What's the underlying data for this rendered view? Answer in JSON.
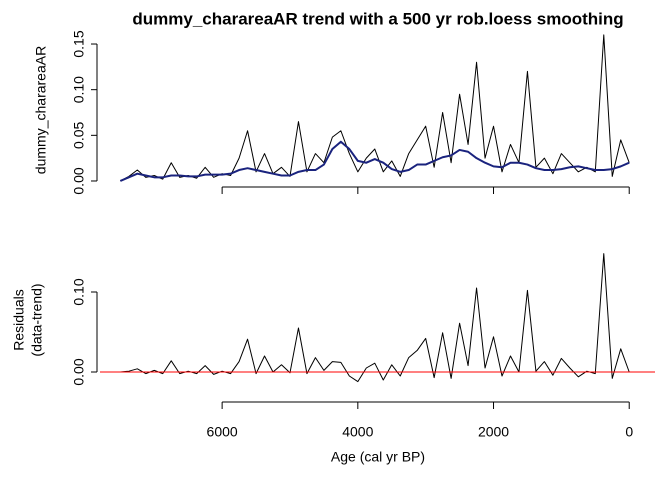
{
  "chart_data": [
    {
      "type": "line",
      "title": "dummy_charareaAR trend with a 500 yr rob.loess smoothing",
      "ylabel": "dummy_charareaAR",
      "x": [
        7500,
        7375,
        7250,
        7125,
        7000,
        6875,
        6750,
        6625,
        6500,
        6375,
        6250,
        6125,
        6000,
        5875,
        5750,
        5625,
        5500,
        5375,
        5250,
        5125,
        5000,
        4875,
        4750,
        4625,
        4500,
        4375,
        4250,
        4125,
        4000,
        3875,
        3750,
        3625,
        3500,
        3375,
        3250,
        3125,
        3000,
        2875,
        2750,
        2625,
        2500,
        2375,
        2250,
        2125,
        2000,
        1875,
        1750,
        1625,
        1500,
        1375,
        1250,
        1125,
        1000,
        875,
        750,
        625,
        500,
        375,
        250,
        125,
        0
      ],
      "series": [
        {
          "color": "#000000",
          "width": 1,
          "values": [
            0.0,
            0.005,
            0.012,
            0.004,
            0.006,
            0.002,
            0.02,
            0.004,
            0.006,
            0.003,
            0.015,
            0.004,
            0.008,
            0.006,
            0.025,
            0.055,
            0.01,
            0.03,
            0.008,
            0.015,
            0.005,
            0.065,
            0.01,
            0.03,
            0.02,
            0.048,
            0.055,
            0.03,
            0.01,
            0.025,
            0.035,
            0.01,
            0.022,
            0.005,
            0.03,
            0.045,
            0.06,
            0.015,
            0.075,
            0.02,
            0.095,
            0.04,
            0.13,
            0.025,
            0.06,
            0.01,
            0.04,
            0.02,
            0.12,
            0.015,
            0.025,
            0.008,
            0.03,
            0.02,
            0.01,
            0.015,
            0.01,
            0.16,
            0.005,
            0.045,
            0.02
          ]
        },
        {
          "color": "#1a237e",
          "width": 2,
          "values": [
            0.0,
            0.004,
            0.008,
            0.006,
            0.004,
            0.004,
            0.006,
            0.006,
            0.005,
            0.005,
            0.007,
            0.007,
            0.007,
            0.008,
            0.012,
            0.014,
            0.012,
            0.01,
            0.008,
            0.006,
            0.006,
            0.01,
            0.012,
            0.012,
            0.018,
            0.035,
            0.043,
            0.035,
            0.022,
            0.02,
            0.024,
            0.02,
            0.013,
            0.01,
            0.012,
            0.018,
            0.018,
            0.022,
            0.026,
            0.028,
            0.034,
            0.032,
            0.025,
            0.02,
            0.016,
            0.015,
            0.02,
            0.02,
            0.018,
            0.014,
            0.012,
            0.012,
            0.013,
            0.015,
            0.016,
            0.014,
            0.012,
            0.012,
            0.013,
            0.016,
            0.02
          ]
        }
      ],
      "xlim": [
        7800,
        -380
      ],
      "ylim": [
        -0.0044,
        0.1544
      ],
      "yticks": [
        {
          "value": 0,
          "label": "0.00"
        },
        {
          "value": 0.05,
          "label": "0.05"
        },
        {
          "value": 0.1,
          "label": "0.10"
        },
        {
          "value": 0.15,
          "label": "0.15"
        }
      ]
    },
    {
      "type": "line",
      "ylabel": [
        "Residuals",
        "(data-trend)"
      ],
      "xlabel": "Age (cal yr BP)",
      "x": [
        7500,
        7375,
        7250,
        7125,
        7000,
        6875,
        6750,
        6625,
        6500,
        6375,
        6250,
        6125,
        6000,
        5875,
        5750,
        5625,
        5500,
        5375,
        5250,
        5125,
        5000,
        4875,
        4750,
        4625,
        4500,
        4375,
        4250,
        4125,
        4000,
        3875,
        3750,
        3625,
        3500,
        3375,
        3250,
        3125,
        3000,
        2875,
        2750,
        2625,
        2500,
        2375,
        2250,
        2125,
        2000,
        1875,
        1750,
        1625,
        1500,
        1375,
        1250,
        1125,
        1000,
        875,
        750,
        625,
        500,
        375,
        250,
        125,
        0
      ],
      "series": [
        {
          "color": "#000000",
          "width": 1,
          "values": [
            0,
            0.001,
            0.004,
            -0.002,
            0.002,
            -0.002,
            0.014,
            -0.002,
            0.001,
            -0.002,
            0.008,
            -0.003,
            0.001,
            -0.002,
            0.013,
            0.041,
            -0.002,
            0.02,
            0,
            0.009,
            -0.001,
            0.055,
            -0.002,
            0.018,
            0.002,
            0.013,
            0.012,
            -0.005,
            -0.012,
            0.005,
            0.011,
            -0.01,
            0.009,
            -0.005,
            0.018,
            0.027,
            0.042,
            -0.007,
            0.049,
            -0.008,
            0.061,
            0.008,
            0.105,
            0.005,
            0.044,
            -0.005,
            0.02,
            0,
            0.102,
            0.001,
            0.013,
            -0.004,
            0.017,
            0.005,
            -0.006,
            0.001,
            -0.002,
            0.148,
            -0.008,
            0.029,
            0
          ]
        }
      ],
      "hline": {
        "value": 0,
        "color": "#ff0000"
      },
      "xlim": [
        7800,
        -380
      ],
      "ylim": [
        -0.0325,
        0.1575
      ],
      "xticks": [
        6000,
        4000,
        2000,
        0
      ],
      "yticks": [
        {
          "value": 0,
          "label": "0.00"
        },
        {
          "value": 0.1,
          "label": "0.10"
        }
      ]
    }
  ]
}
